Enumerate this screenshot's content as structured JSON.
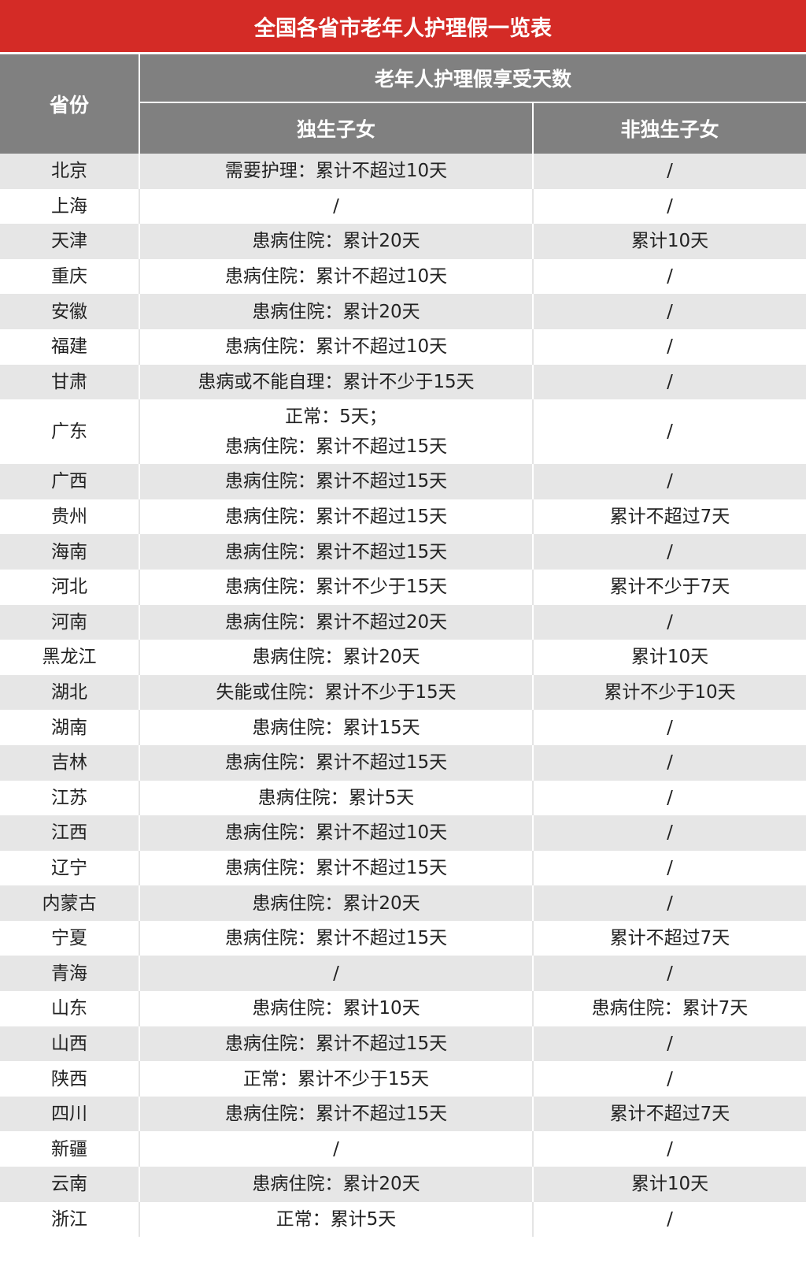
{
  "title": "全国各省市老年人护理假一览表",
  "colors": {
    "title_bg": "#d42b26",
    "header_bg": "#808080",
    "row_alt_bg": "#e6e6e6"
  },
  "header": {
    "province": "省份",
    "group": "老年人护理假享受天数",
    "only_child": "独生子女",
    "non_only_child": "非独生子女"
  },
  "rows": [
    {
      "province": "北京",
      "only_child": "需要护理：累计不超过10天",
      "non_only_child": "/"
    },
    {
      "province": "上海",
      "only_child": "/",
      "non_only_child": "/"
    },
    {
      "province": "天津",
      "only_child": "患病住院：累计20天",
      "non_only_child": "累计10天"
    },
    {
      "province": "重庆",
      "only_child": "患病住院：累计不超过10天",
      "non_only_child": "/"
    },
    {
      "province": "安徽",
      "only_child": "患病住院：累计20天",
      "non_only_child": "/"
    },
    {
      "province": "福建",
      "only_child": "患病住院：累计不超过10天",
      "non_only_child": "/"
    },
    {
      "province": "甘肃",
      "only_child": "患病或不能自理：累计不少于15天",
      "non_only_child": "/"
    },
    {
      "province": "广东",
      "only_child": "正常：5天；\n患病住院：累计不超过15天",
      "non_only_child": "/"
    },
    {
      "province": "广西",
      "only_child": "患病住院：累计不超过15天",
      "non_only_child": "/"
    },
    {
      "province": "贵州",
      "only_child": "患病住院：累计不超过15天",
      "non_only_child": "累计不超过7天"
    },
    {
      "province": "海南",
      "only_child": "患病住院：累计不超过15天",
      "non_only_child": "/"
    },
    {
      "province": "河北",
      "only_child": "患病住院：累计不少于15天",
      "non_only_child": "累计不少于7天"
    },
    {
      "province": "河南",
      "only_child": "患病住院：累计不超过20天",
      "non_only_child": "/"
    },
    {
      "province": "黑龙江",
      "only_child": "患病住院：累计20天",
      "non_only_child": "累计10天"
    },
    {
      "province": "湖北",
      "only_child": "失能或住院：累计不少于15天",
      "non_only_child": "累计不少于10天"
    },
    {
      "province": "湖南",
      "only_child": "患病住院：累计15天",
      "non_only_child": "/"
    },
    {
      "province": "吉林",
      "only_child": "患病住院：累计不超过15天",
      "non_only_child": "/"
    },
    {
      "province": "江苏",
      "only_child": "患病住院：累计5天",
      "non_only_child": "/"
    },
    {
      "province": "江西",
      "only_child": "患病住院：累计不超过10天",
      "non_only_child": "/"
    },
    {
      "province": "辽宁",
      "only_child": "患病住院：累计不超过15天",
      "non_only_child": "/"
    },
    {
      "province": "内蒙古",
      "only_child": "患病住院：累计20天",
      "non_only_child": "/"
    },
    {
      "province": "宁夏",
      "only_child": "患病住院：累计不超过15天",
      "non_only_child": "累计不超过7天"
    },
    {
      "province": "青海",
      "only_child": "/",
      "non_only_child": "/"
    },
    {
      "province": "山东",
      "only_child": "患病住院：累计10天",
      "non_only_child": "患病住院：累计7天"
    },
    {
      "province": "山西",
      "only_child": "患病住院：累计不超过15天",
      "non_only_child": "/"
    },
    {
      "province": "陕西",
      "only_child": "正常：累计不少于15天",
      "non_only_child": "/"
    },
    {
      "province": "四川",
      "only_child": "患病住院：累计不超过15天",
      "non_only_child": "累计不超过7天"
    },
    {
      "province": "新疆",
      "only_child": "/",
      "non_only_child": "/"
    },
    {
      "province": "云南",
      "only_child": "患病住院：累计20天",
      "non_only_child": "累计10天"
    },
    {
      "province": "浙江",
      "only_child": "正常：累计5天",
      "non_only_child": "/"
    }
  ]
}
